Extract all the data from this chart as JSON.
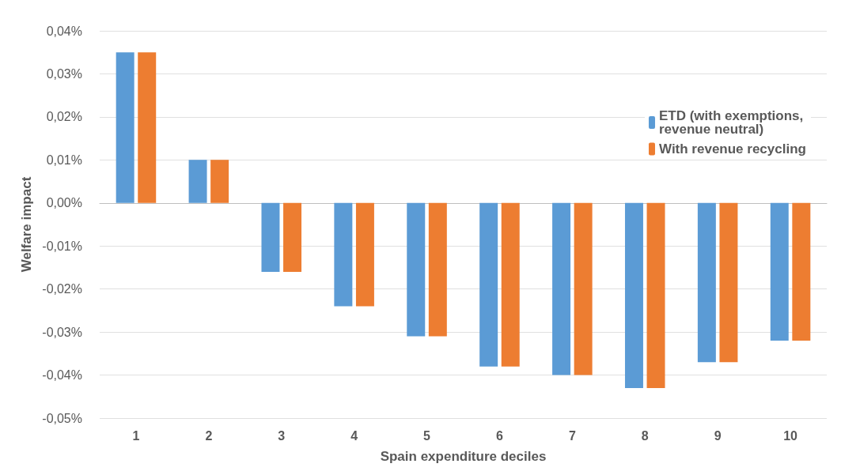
{
  "chart_data": {
    "type": "bar",
    "xlabel": "Spain expenditure deciles",
    "ylabel": "Welfare impact",
    "categories": [
      "1",
      "2",
      "3",
      "4",
      "5",
      "6",
      "7",
      "8",
      "9",
      "10"
    ],
    "series": [
      {
        "name": "ETD (with exemptions, revenue neutral)",
        "color": "#5b9bd5",
        "values": [
          0.035,
          0.01,
          -0.016,
          -0.024,
          -0.031,
          -0.038,
          -0.04,
          -0.043,
          -0.037,
          -0.032
        ]
      },
      {
        "name": "With revenue recycling",
        "color": "#ed7d31",
        "values": [
          0.035,
          0.01,
          -0.016,
          -0.024,
          -0.031,
          -0.038,
          -0.04,
          -0.043,
          -0.037,
          -0.032
        ]
      }
    ],
    "ylim": [
      -0.05,
      0.04
    ],
    "yticks": [
      {
        "value": -0.05,
        "label": "-0,05%"
      },
      {
        "value": -0.04,
        "label": "-0,04%"
      },
      {
        "value": -0.03,
        "label": "-0,03%"
      },
      {
        "value": -0.02,
        "label": "-0,02%"
      },
      {
        "value": -0.01,
        "label": "-0,01%"
      },
      {
        "value": 0,
        "label": "0,00%"
      },
      {
        "value": 0.01,
        "label": "0,01%"
      },
      {
        "value": 0.02,
        "label": "0,02%"
      },
      {
        "value": 0.03,
        "label": "0,03%"
      },
      {
        "value": 0.04,
        "label": "0,04%"
      }
    ],
    "grid": "y",
    "legend": "top right"
  }
}
